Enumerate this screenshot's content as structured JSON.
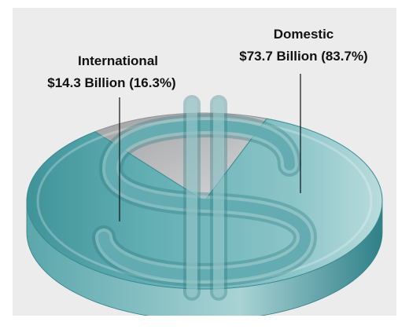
{
  "chart_data": {
    "type": "pie",
    "style": "3d-coin",
    "background": "#ececec",
    "slices": [
      {
        "name": "International",
        "value": 14.3,
        "value_label": "$14.3 Billion (16.3%)",
        "percent": 16.3,
        "color": "#b7b9ba"
      },
      {
        "name": "Domestic",
        "value": 73.7,
        "value_label": "$73.7 Billion (83.7%)",
        "percent": 83.7,
        "color": "#5aaab0"
      }
    ],
    "icon": "dollar-sign-icon"
  }
}
